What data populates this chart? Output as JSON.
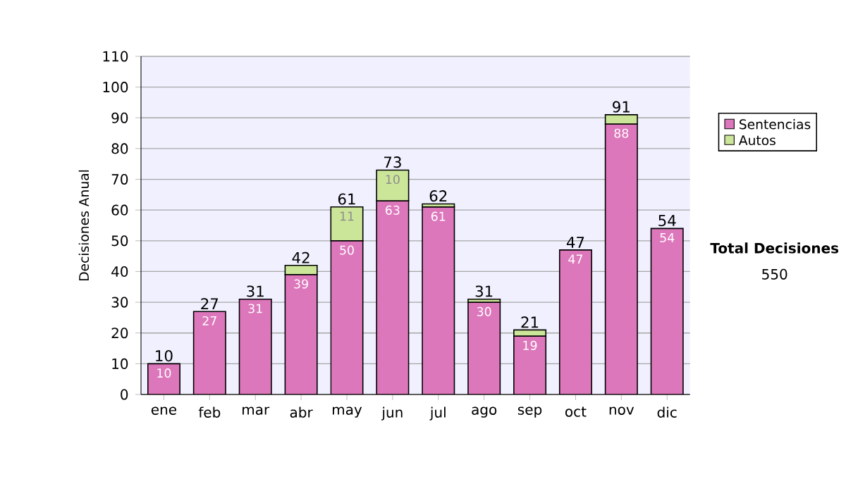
{
  "chart_data": {
    "type": "bar",
    "stacked": true,
    "ylabel": "Decisiones Anual",
    "categories": [
      "ene",
      "feb",
      "mar",
      "abr",
      "may",
      "jun",
      "jul",
      "ago",
      "sep",
      "oct",
      "nov",
      "dic"
    ],
    "series": [
      {
        "name": "Sentencias",
        "color": "#dd77bb",
        "values": [
          10,
          27,
          31,
          39,
          50,
          63,
          61,
          30,
          19,
          47,
          88,
          54
        ],
        "value_labels": [
          "10",
          "27",
          "31",
          "39",
          "50",
          "63",
          "61",
          "30",
          "19",
          "47",
          "88",
          "54"
        ]
      },
      {
        "name": "Autos",
        "color": "#cce699",
        "values": [
          null,
          null,
          null,
          3,
          11,
          10,
          1,
          1,
          2,
          null,
          3,
          null
        ],
        "value_labels": [
          null,
          null,
          null,
          null,
          "11",
          "10",
          null,
          null,
          null,
          null,
          null,
          null
        ]
      }
    ],
    "totals": [
      "10",
      "27",
      "31",
      "42",
      "61",
      "73",
      "62",
      "31",
      "21",
      "47",
      "91",
      "54"
    ],
    "ylim": [
      0,
      110
    ],
    "yticks": [
      0,
      10,
      20,
      30,
      40,
      50,
      60,
      70,
      80,
      90,
      100,
      110
    ],
    "grid": "y",
    "legend": "right",
    "annotations": [
      "Total Decisiones",
      "550"
    ]
  }
}
